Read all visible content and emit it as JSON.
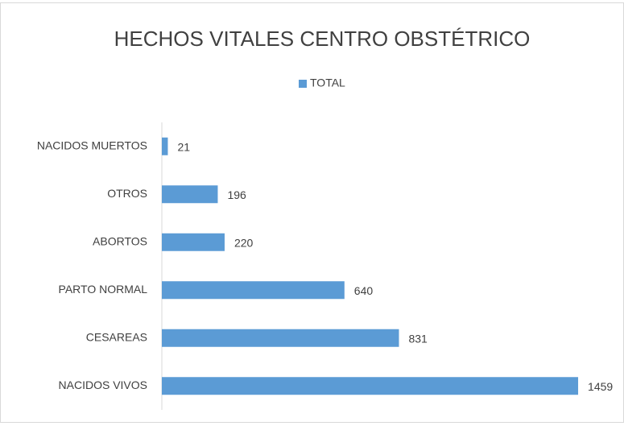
{
  "chart_data": {
    "type": "bar",
    "orientation": "horizontal",
    "title": "HECHOS VITALES CENTRO OBSTÉTRICO",
    "categories": [
      "NACIDOS MUERTOS",
      "OTROS",
      "ABORTOS",
      "PARTO NORMAL",
      "CESAREAS",
      "NACIDOS VIVOS"
    ],
    "series": [
      {
        "name": "TOTAL",
        "color": "#5b9bd5",
        "values": [
          21,
          196,
          220,
          640,
          831,
          1459
        ]
      }
    ],
    "xlim": [
      0,
      1600
    ],
    "legend": "top"
  }
}
